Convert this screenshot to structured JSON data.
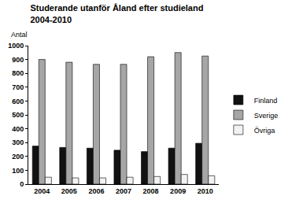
{
  "chart_data": {
    "type": "bar",
    "title": "Studerande utanför Åland efter studieland\n2004-2010",
    "ylabel": "Antal",
    "categories": [
      "2004",
      "2005",
      "2006",
      "2007",
      "2008",
      "2009",
      "2010"
    ],
    "series": [
      {
        "name": "Finland",
        "color": "#111111",
        "values": [
          275,
          265,
          260,
          245,
          235,
          260,
          295
        ]
      },
      {
        "name": "Sverige",
        "color": "#a6a6a6",
        "values": [
          900,
          880,
          865,
          865,
          920,
          950,
          925
        ]
      },
      {
        "name": "Övriga",
        "color": "#f2f2f2",
        "values": [
          50,
          45,
          45,
          50,
          55,
          70,
          60
        ]
      }
    ],
    "ylim": [
      0,
      1000
    ],
    "yticks": [
      0,
      100,
      200,
      300,
      400,
      500,
      600,
      700,
      800,
      900,
      1000
    ],
    "grid": false,
    "legend": "right"
  }
}
